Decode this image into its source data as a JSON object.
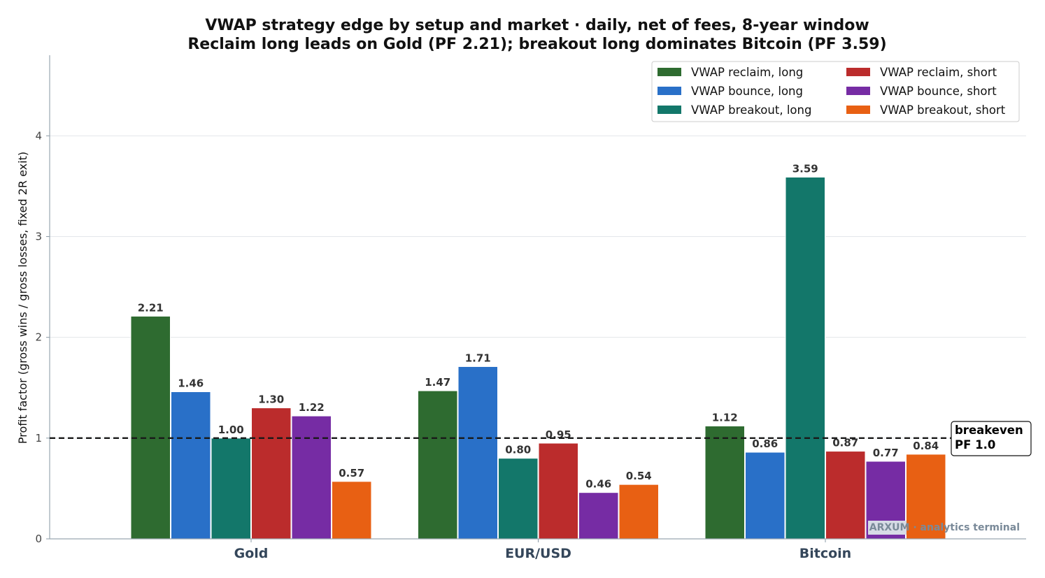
{
  "chart_data": {
    "type": "bar",
    "title": "VWAP strategy edge by setup and market · daily, net of fees, 8-year window",
    "subtitle": "Reclaim long leads on Gold (PF 2.21); breakout long dominates Bitcoin (PF 3.59)",
    "xlabel": "",
    "ylabel": "Profit factor (gross wins / gross losses, fixed 2R exit)",
    "ylim": [
      0,
      4.8
    ],
    "yticks": [
      0,
      1,
      2,
      3,
      4
    ],
    "grid": true,
    "legend_position": "top-right",
    "categories": [
      "Gold",
      "EUR/USD",
      "Bitcoin"
    ],
    "series": [
      {
        "name": "VWAP reclaim, long",
        "color": "#2e6b30",
        "values": [
          2.21,
          1.47,
          1.12
        ]
      },
      {
        "name": "VWAP bounce, long",
        "color": "#2970c8",
        "values": [
          1.46,
          1.71,
          0.86
        ]
      },
      {
        "name": "VWAP breakout, long",
        "color": "#13776a",
        "values": [
          1.0,
          0.8,
          3.59
        ]
      },
      {
        "name": "VWAP reclaim, short",
        "color": "#bb2c2c",
        "values": [
          1.3,
          0.95,
          0.87
        ]
      },
      {
        "name": "VWAP bounce, short",
        "color": "#762ca4",
        "values": [
          1.22,
          0.46,
          0.77
        ]
      },
      {
        "name": "VWAP breakout, short",
        "color": "#e86013",
        "values": [
          0.57,
          0.54,
          0.84
        ]
      }
    ],
    "reference_line": {
      "value": 1.0,
      "label_line1": "breakeven",
      "label_line2": "PF 1.0"
    },
    "watermark": "ARXUM · analytics terminal"
  }
}
